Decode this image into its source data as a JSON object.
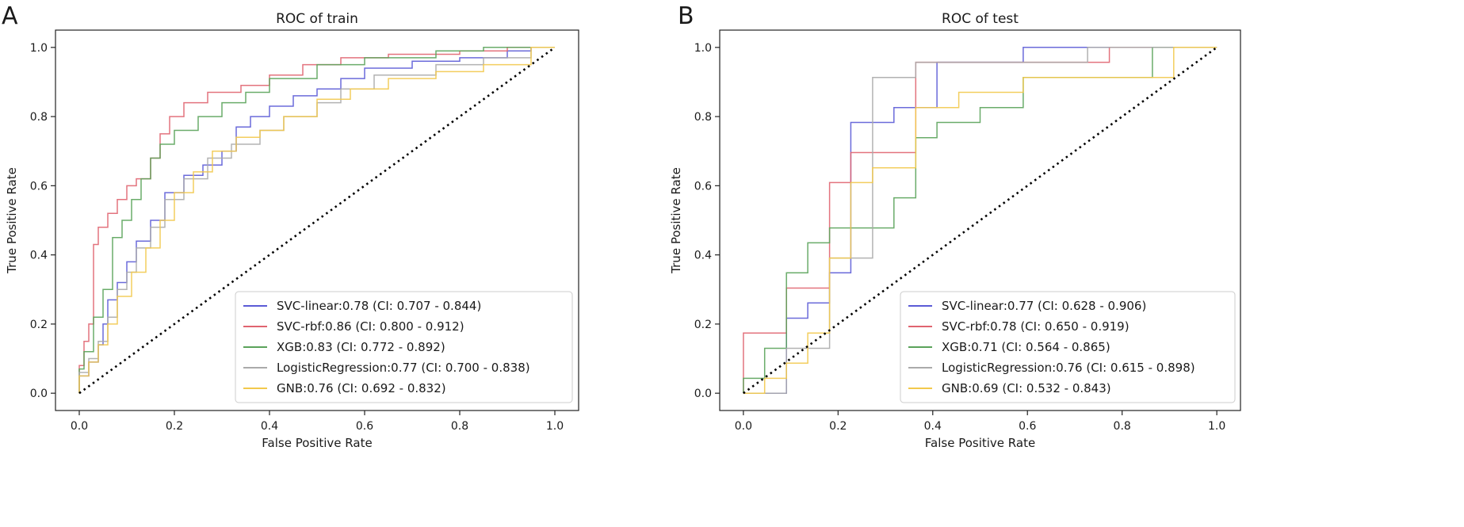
{
  "chart_data": [
    {
      "panel": "A",
      "type": "line",
      "title": "ROC of train",
      "xlabel": "False Positive Rate",
      "ylabel": "True Positive Rate",
      "xlim": [
        -0.05,
        1.05
      ],
      "ylim": [
        -0.05,
        1.05
      ],
      "xticks": [
        "0.0",
        "0.2",
        "0.4",
        "0.6",
        "0.8",
        "1.0"
      ],
      "yticks": [
        "0.0",
        "0.2",
        "0.4",
        "0.6",
        "0.8",
        "1.0"
      ],
      "legend_position": "bottom-right",
      "series": [
        {
          "name": "SVC-linear",
          "label": "SVC-linear:0.78 (CI: 0.707 - 0.844)",
          "color": "#5b5bd6",
          "x": [
            0,
            0,
            0.02,
            0.02,
            0.04,
            0.04,
            0.05,
            0.05,
            0.06,
            0.06,
            0.08,
            0.08,
            0.1,
            0.1,
            0.12,
            0.12,
            0.15,
            0.15,
            0.18,
            0.18,
            0.22,
            0.22,
            0.26,
            0.26,
            0.3,
            0.3,
            0.33,
            0.33,
            0.36,
            0.36,
            0.4,
            0.4,
            0.45,
            0.45,
            0.5,
            0.5,
            0.55,
            0.55,
            0.6,
            0.6,
            0.7,
            0.7,
            0.8,
            0.8,
            0.9,
            0.9,
            0.95,
            0.95,
            1
          ],
          "y": [
            0,
            0.05,
            0.05,
            0.09,
            0.09,
            0.14,
            0.14,
            0.2,
            0.2,
            0.27,
            0.27,
            0.32,
            0.32,
            0.38,
            0.38,
            0.44,
            0.44,
            0.5,
            0.5,
            0.58,
            0.58,
            0.63,
            0.63,
            0.66,
            0.66,
            0.7,
            0.7,
            0.77,
            0.77,
            0.8,
            0.8,
            0.83,
            0.83,
            0.86,
            0.86,
            0.88,
            0.88,
            0.91,
            0.91,
            0.94,
            0.94,
            0.96,
            0.96,
            0.97,
            0.97,
            0.99,
            0.99,
            1,
            1
          ]
        },
        {
          "name": "SVC-rbf",
          "label": "SVC-rbf:0.86 (CI: 0.800 - 0.912)",
          "color": "#e06470",
          "x": [
            0,
            0,
            0.01,
            0.01,
            0.02,
            0.02,
            0.03,
            0.03,
            0.04,
            0.04,
            0.06,
            0.06,
            0.08,
            0.08,
            0.1,
            0.1,
            0.12,
            0.12,
            0.15,
            0.15,
            0.17,
            0.17,
            0.19,
            0.19,
            0.22,
            0.22,
            0.27,
            0.27,
            0.34,
            0.34,
            0.4,
            0.4,
            0.47,
            0.47,
            0.55,
            0.55,
            0.65,
            0.65,
            0.8,
            0.8,
            0.9,
            0.9,
            1
          ],
          "y": [
            0,
            0.08,
            0.08,
            0.15,
            0.15,
            0.2,
            0.2,
            0.43,
            0.43,
            0.48,
            0.48,
            0.52,
            0.52,
            0.56,
            0.56,
            0.6,
            0.6,
            0.62,
            0.62,
            0.68,
            0.68,
            0.75,
            0.75,
            0.8,
            0.8,
            0.84,
            0.84,
            0.87,
            0.87,
            0.89,
            0.89,
            0.92,
            0.92,
            0.95,
            0.95,
            0.97,
            0.97,
            0.98,
            0.98,
            0.99,
            0.99,
            1,
            1
          ]
        },
        {
          "name": "XGB",
          "label": "XGB:0.83 (CI: 0.772 - 0.892)",
          "color": "#5aa35a",
          "x": [
            0,
            0,
            0.01,
            0.01,
            0.03,
            0.03,
            0.05,
            0.05,
            0.07,
            0.07,
            0.09,
            0.09,
            0.11,
            0.11,
            0.13,
            0.13,
            0.15,
            0.15,
            0.17,
            0.17,
            0.2,
            0.2,
            0.25,
            0.25,
            0.3,
            0.3,
            0.35,
            0.35,
            0.4,
            0.4,
            0.5,
            0.5,
            0.6,
            0.6,
            0.75,
            0.75,
            0.85,
            0.85,
            1
          ],
          "y": [
            0,
            0.07,
            0.07,
            0.12,
            0.12,
            0.22,
            0.22,
            0.3,
            0.3,
            0.45,
            0.45,
            0.5,
            0.5,
            0.56,
            0.56,
            0.62,
            0.62,
            0.68,
            0.68,
            0.72,
            0.72,
            0.76,
            0.76,
            0.8,
            0.8,
            0.84,
            0.84,
            0.87,
            0.87,
            0.91,
            0.91,
            0.95,
            0.95,
            0.97,
            0.97,
            0.99,
            0.99,
            1,
            1
          ]
        },
        {
          "name": "LogisticRegression",
          "label": "LogisticRegression:0.77 (CI: 0.700 - 0.838)",
          "color": "#aaaaaa",
          "x": [
            0,
            0,
            0.02,
            0.02,
            0.04,
            0.04,
            0.06,
            0.06,
            0.08,
            0.08,
            0.1,
            0.1,
            0.12,
            0.12,
            0.15,
            0.15,
            0.18,
            0.18,
            0.22,
            0.22,
            0.27,
            0.27,
            0.32,
            0.32,
            0.38,
            0.38,
            0.43,
            0.43,
            0.5,
            0.5,
            0.55,
            0.55,
            0.62,
            0.62,
            0.75,
            0.75,
            0.85,
            0.85,
            0.95,
            0.95,
            1
          ],
          "y": [
            0,
            0.06,
            0.06,
            0.1,
            0.1,
            0.15,
            0.15,
            0.22,
            0.22,
            0.3,
            0.3,
            0.35,
            0.35,
            0.42,
            0.42,
            0.48,
            0.48,
            0.56,
            0.56,
            0.62,
            0.62,
            0.68,
            0.68,
            0.72,
            0.72,
            0.76,
            0.76,
            0.8,
            0.8,
            0.84,
            0.84,
            0.88,
            0.88,
            0.92,
            0.92,
            0.95,
            0.95,
            0.97,
            0.97,
            1,
            1
          ]
        },
        {
          "name": "GNB",
          "label": "GNB:0.76 (CI: 0.692 - 0.832)",
          "color": "#f2c94c",
          "x": [
            0,
            0,
            0.02,
            0.02,
            0.04,
            0.04,
            0.06,
            0.06,
            0.08,
            0.08,
            0.11,
            0.11,
            0.14,
            0.14,
            0.17,
            0.17,
            0.2,
            0.2,
            0.24,
            0.24,
            0.28,
            0.28,
            0.33,
            0.33,
            0.38,
            0.38,
            0.43,
            0.43,
            0.5,
            0.5,
            0.57,
            0.57,
            0.65,
            0.65,
            0.75,
            0.75,
            0.85,
            0.85,
            0.95,
            0.95,
            1
          ],
          "y": [
            0,
            0.05,
            0.05,
            0.09,
            0.09,
            0.14,
            0.14,
            0.2,
            0.2,
            0.28,
            0.28,
            0.35,
            0.35,
            0.42,
            0.42,
            0.5,
            0.5,
            0.58,
            0.58,
            0.64,
            0.64,
            0.7,
            0.7,
            0.74,
            0.74,
            0.76,
            0.76,
            0.8,
            0.8,
            0.85,
            0.85,
            0.88,
            0.88,
            0.91,
            0.91,
            0.93,
            0.93,
            0.95,
            0.95,
            1,
            1
          ]
        }
      ]
    },
    {
      "panel": "B",
      "type": "line",
      "title": "ROC of test",
      "xlabel": "False Positive Rate",
      "ylabel": "True Positive Rate",
      "xlim": [
        -0.05,
        1.05
      ],
      "ylim": [
        -0.05,
        1.05
      ],
      "xticks": [
        "0.0",
        "0.2",
        "0.4",
        "0.6",
        "0.8",
        "1.0"
      ],
      "yticks": [
        "0.0",
        "0.2",
        "0.4",
        "0.6",
        "0.8",
        "1.0"
      ],
      "legend_position": "bottom-right",
      "series": [
        {
          "name": "SVC-linear",
          "label": "SVC-linear:0.77 (CI: 0.628 - 0.906)",
          "color": "#5b5bd6",
          "x": [
            0,
            0.091,
            0.091,
            0.136,
            0.136,
            0.182,
            0.182,
            0.227,
            0.227,
            0.273,
            0.273,
            0.318,
            0.318,
            0.409,
            0.409,
            0.591,
            0.591,
            1
          ],
          "y": [
            0,
            0,
            0.217,
            0.217,
            0.261,
            0.261,
            0.348,
            0.348,
            0.783,
            0.783,
            0.783,
            0.783,
            0.826,
            0.826,
            0.957,
            0.957,
            1,
            1
          ]
        },
        {
          "name": "SVC-rbf",
          "label": "SVC-rbf:0.78 (CI: 0.650 - 0.919)",
          "color": "#e06470",
          "x": [
            0,
            0,
            0.091,
            0.091,
            0.182,
            0.182,
            0.227,
            0.227,
            0.364,
            0.364,
            0.773,
            0.773,
            1
          ],
          "y": [
            0,
            0.174,
            0.174,
            0.304,
            0.304,
            0.609,
            0.609,
            0.696,
            0.696,
            0.957,
            0.957,
            1,
            1
          ]
        },
        {
          "name": "XGB",
          "label": "XGB:0.71 (CI: 0.564 - 0.865)",
          "color": "#5aa35a",
          "x": [
            0,
            0,
            0.045,
            0.045,
            0.091,
            0.091,
            0.136,
            0.136,
            0.182,
            0.182,
            0.318,
            0.318,
            0.364,
            0.364,
            0.409,
            0.409,
            0.5,
            0.5,
            0.591,
            0.591,
            0.864,
            0.864,
            1
          ],
          "y": [
            0,
            0.043,
            0.043,
            0.13,
            0.13,
            0.348,
            0.348,
            0.435,
            0.435,
            0.478,
            0.478,
            0.565,
            0.565,
            0.739,
            0.739,
            0.783,
            0.783,
            0.826,
            0.826,
            0.913,
            0.913,
            1,
            1
          ]
        },
        {
          "name": "LogisticRegression",
          "label": "LogisticRegression:0.76 (CI: 0.615 - 0.898)",
          "color": "#aaaaaa",
          "x": [
            0,
            0.091,
            0.091,
            0.182,
            0.182,
            0.227,
            0.227,
            0.273,
            0.273,
            0.364,
            0.364,
            0.727,
            0.727,
            1
          ],
          "y": [
            0,
            0,
            0.13,
            0.13,
            0.391,
            0.391,
            0.391,
            0.391,
            0.913,
            0.913,
            0.957,
            0.957,
            1,
            1
          ]
        },
        {
          "name": "GNB",
          "label": "GNB:0.69 (CI: 0.532 - 0.843)",
          "color": "#f2c94c",
          "x": [
            0,
            0.045,
            0.045,
            0.091,
            0.091,
            0.136,
            0.136,
            0.182,
            0.182,
            0.227,
            0.227,
            0.273,
            0.273,
            0.364,
            0.364,
            0.455,
            0.455,
            0.591,
            0.591,
            0.909,
            0.909,
            1
          ],
          "y": [
            0,
            0,
            0.043,
            0.043,
            0.087,
            0.087,
            0.174,
            0.174,
            0.391,
            0.391,
            0.609,
            0.609,
            0.652,
            0.652,
            0.826,
            0.826,
            0.87,
            0.87,
            0.913,
            0.913,
            1,
            1
          ]
        }
      ]
    }
  ]
}
